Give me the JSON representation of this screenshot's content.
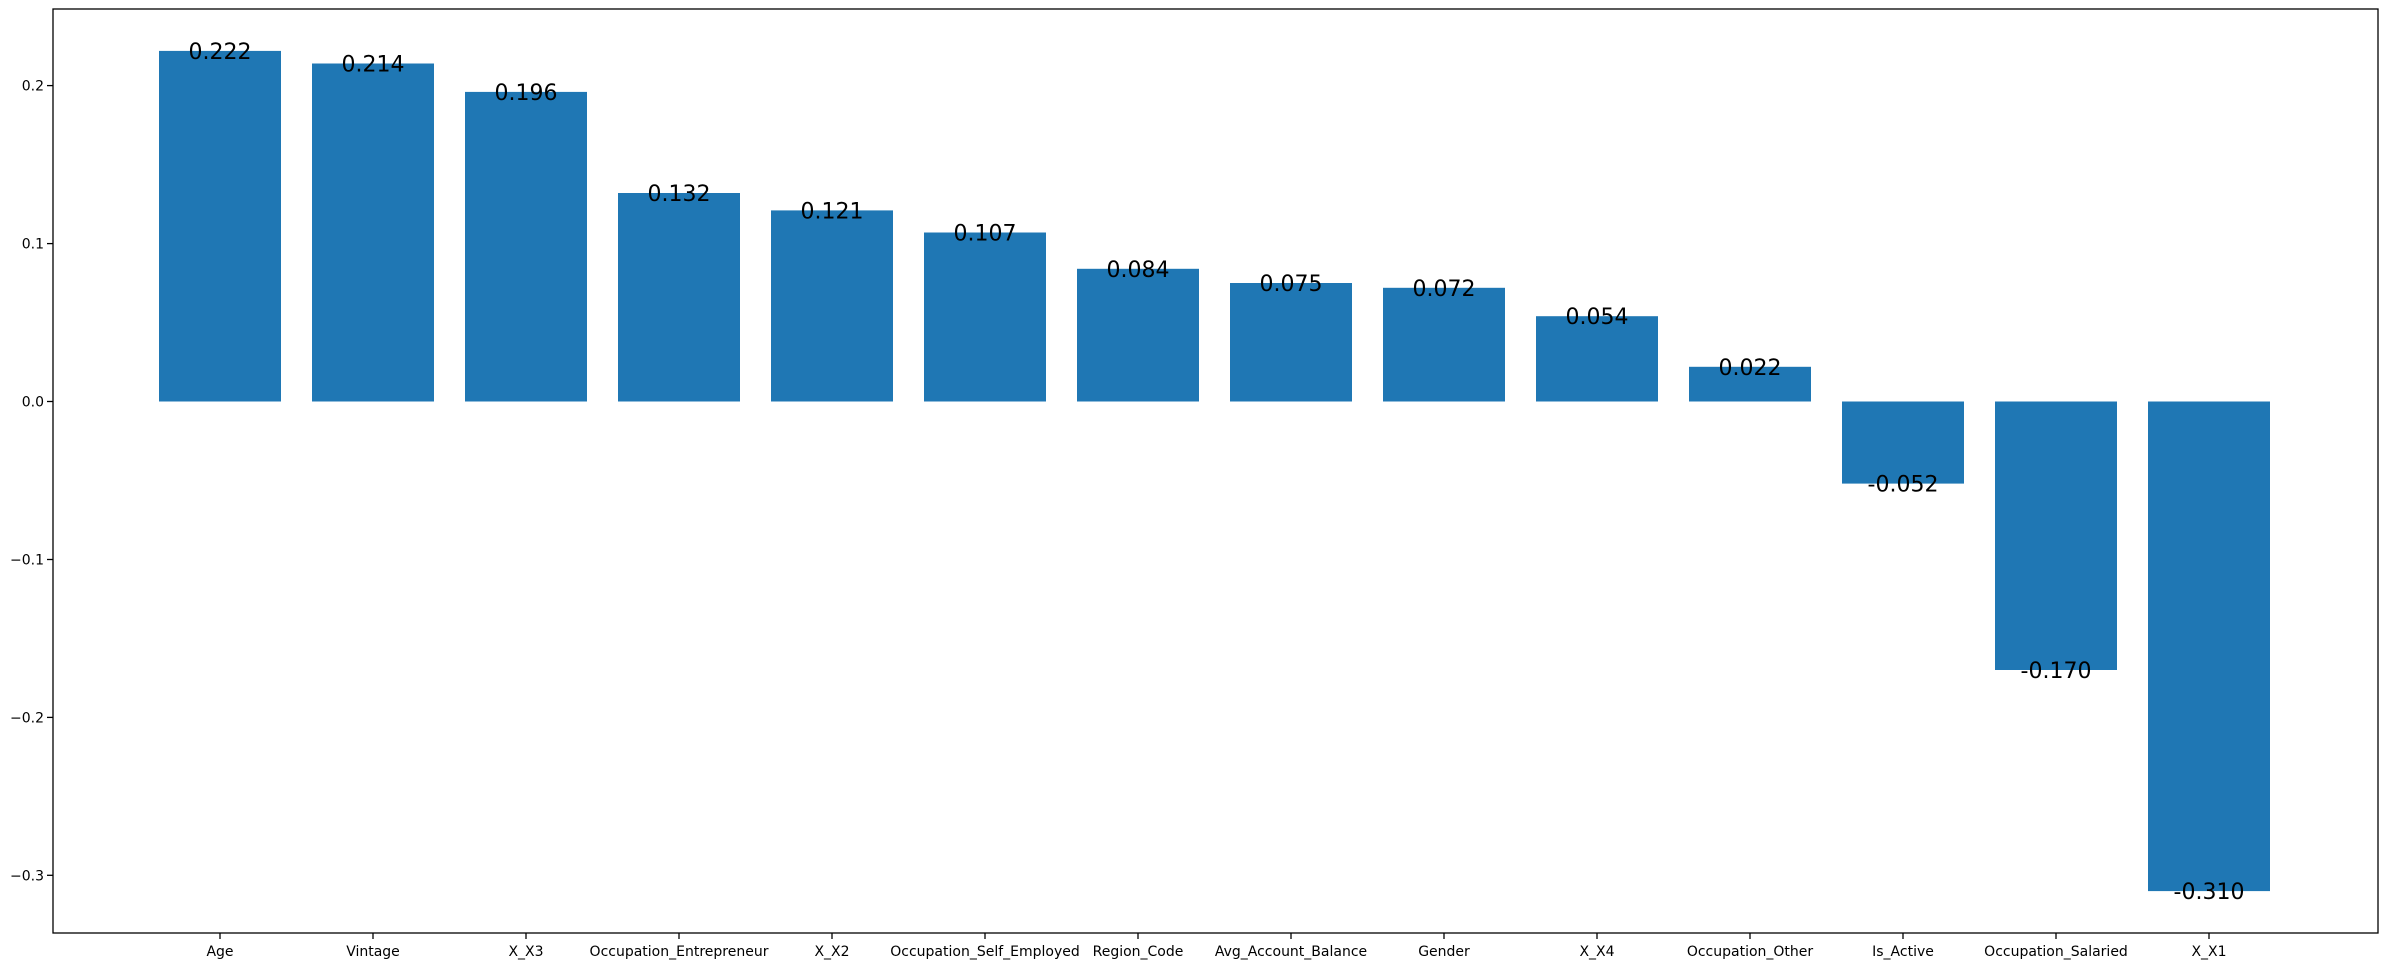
{
  "chart_data": {
    "type": "bar",
    "title": "",
    "xlabel": "",
    "ylabel": "",
    "categories": [
      "Age",
      "Vintage",
      "X_X3",
      "Occupation_Entrepreneur",
      "X_X2",
      "Occupation_Self_Employed",
      "Region_Code",
      "Avg_Account_Balance",
      "Gender",
      "X_X4",
      "Occupation_Other",
      "Is_Active",
      "Occupation_Salaried",
      "X_X1"
    ],
    "values": [
      0.222,
      0.214,
      0.196,
      0.132,
      0.121,
      0.107,
      0.084,
      0.075,
      0.072,
      0.054,
      0.022,
      -0.052,
      -0.17,
      -0.31
    ],
    "data_labels": [
      "0.222",
      "0.214",
      "0.196",
      "0.132",
      "0.121",
      "0.107",
      "0.084",
      "0.075",
      "0.072",
      "0.054",
      "0.022",
      "-0.052",
      "-0.170",
      "-0.310"
    ],
    "y_ticks": [
      0.2,
      0.1,
      0.0,
      -0.1,
      -0.2,
      -0.3
    ],
    "y_tick_labels": [
      "0.2",
      "0.1",
      "0.0",
      "−0.1",
      "−0.2",
      "−0.3"
    ],
    "ylim": [
      -0.3365,
      0.2485
    ],
    "grid": false,
    "legend": "none",
    "bar_color": "#1f77b4"
  }
}
